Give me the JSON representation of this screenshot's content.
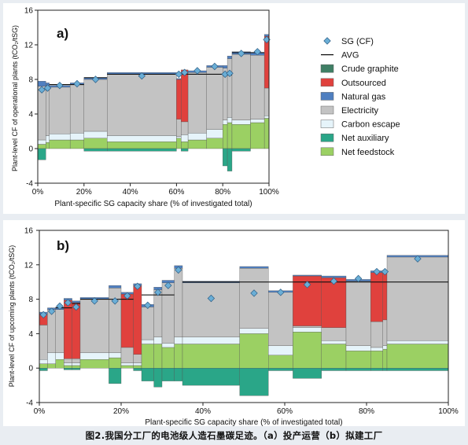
{
  "caption": "图2.我国分工厂的电池级人造石墨碳足迹。（a）投产运营（b）拟建工厂",
  "colors": {
    "Crude graphite": "#3f7f65",
    "Outsourced": "#e0413d",
    "Natural gas": "#4f7fc0",
    "Electricity": "#c3c3c3",
    "Carbon escape": "#e6f4fa",
    "Net auxiliary": "#2aa688",
    "Net feedstock": "#9bd063",
    "SG marker": "#6aaed6",
    "AVG": "#111111"
  },
  "legend": [
    {
      "label": "SG (CF)",
      "kind": "diamond"
    },
    {
      "label": "AVG",
      "kind": "line"
    },
    {
      "label": "Crude graphite",
      "kind": "box"
    },
    {
      "label": "Outsourced",
      "kind": "box"
    },
    {
      "label": "Natural gas",
      "kind": "box"
    },
    {
      "label": "Electricity",
      "kind": "box"
    },
    {
      "label": "Carbon escape",
      "kind": "box"
    },
    {
      "label": "Net auxiliary",
      "kind": "box"
    },
    {
      "label": "Net feedstock",
      "kind": "box"
    }
  ],
  "chart_data": [
    {
      "type": "bar",
      "panel_label": "a)",
      "title": "",
      "xlabel": "Plant-specific SG capacity share (% of investigated total)",
      "ylabel": "Plant-level CF of operational plants (tCO₂/tSG)",
      "xlim": [
        0,
        100
      ],
      "ylim": [
        -4,
        16
      ],
      "xticks": [
        "0%",
        "20%",
        "40%",
        "60%",
        "80%",
        "100%"
      ],
      "yticks": [
        "-4",
        "0",
        "4",
        "8",
        "12",
        "16"
      ],
      "bars": [
        {
          "x0": 0,
          "x1": 3.5,
          "values": {
            "Net auxiliary": -1.3,
            "Net feedstock": 0.5,
            "Carbon escape": 0.5,
            "Electricity": 6.2,
            "Natural gas": 0.6
          },
          "sg": 6.8,
          "avg": null
        },
        {
          "x0": 3.5,
          "x1": 5,
          "values": {
            "Net feedstock": 0.7,
            "Carbon escape": 0.8,
            "Electricity": 5.5,
            "Outsourced": 0.3,
            "Natural gas": 0.3
          },
          "sg": 7.0,
          "avg": null
        },
        {
          "x0": 5,
          "x1": 14,
          "values": {
            "Net feedstock": 1.0,
            "Carbon escape": 0.7,
            "Electricity": 5.4,
            "Natural gas": 0.2
          },
          "sg": 7.3,
          "avg": 7.4
        },
        {
          "x0": 14,
          "x1": 20,
          "values": {
            "Net feedstock": 1.0,
            "Carbon escape": 0.8,
            "Electricity": 5.6,
            "Natural gas": 0.2
          },
          "sg": 7.5,
          "avg": 7.4
        },
        {
          "x0": 20,
          "x1": 30,
          "values": {
            "Net auxiliary": -0.3,
            "Net feedstock": 1.2,
            "Carbon escape": 0.8,
            "Electricity": 6.0,
            "Natural gas": 0.2
          },
          "sg": 8.0,
          "avg": 8.2
        },
        {
          "x0": 30,
          "x1": 60,
          "values": {
            "Net auxiliary": -0.3,
            "Net feedstock": 0.8,
            "Carbon escape": 0.7,
            "Electricity": 7.1,
            "Natural gas": 0.2
          },
          "sg": 8.4,
          "avg": 8.6
        },
        {
          "x0": 60,
          "x1": 62,
          "values": {
            "Net feedstock": 1.2,
            "Carbon escape": 0.2,
            "Electricity": 2.0,
            "Outsourced": 4.6,
            "Natural gas": 0.1
          },
          "sg": 8.6,
          "avg": 8.6
        },
        {
          "x0": 62,
          "x1": 65,
          "values": {
            "Net auxiliary": -0.3,
            "Net feedstock": 0.8,
            "Carbon escape": 0.8,
            "Electricity": 1.5,
            "Outsourced": 6.0
          },
          "sg": 8.8,
          "avg": 8.6
        },
        {
          "x0": 65,
          "x1": 73,
          "values": {
            "Net feedstock": 1.0,
            "Carbon escape": 0.8,
            "Electricity": 7.0,
            "Natural gas": 0.2
          },
          "sg": 9.0,
          "avg": 8.6
        },
        {
          "x0": 73,
          "x1": 80,
          "values": {
            "Net feedstock": 1.2,
            "Carbon escape": 1.0,
            "Electricity": 7.2,
            "Natural gas": 0.2
          },
          "sg": 9.5,
          "avg": 8.6
        },
        {
          "x0": 80,
          "x1": 82,
          "values": {
            "Net auxiliary": -2.0,
            "Net feedstock": 2.8,
            "Carbon escape": 0.5,
            "Electricity": 6.0,
            "Natural gas": 0.3
          },
          "sg": 8.6,
          "avg": 8.5
        },
        {
          "x0": 82,
          "x1": 84,
          "values": {
            "Net auxiliary": -2.6,
            "Net feedstock": 3.0,
            "Carbon escape": 0.6,
            "Electricity": 6.8,
            "Natural gas": 0.3
          },
          "sg": 8.7,
          "avg": 8.5
        },
        {
          "x0": 84,
          "x1": 92,
          "values": {
            "Net auxiliary": -0.3,
            "Net feedstock": 2.8,
            "Carbon escape": 0.5,
            "Electricity": 7.6,
            "Natural gas": 0.3
          },
          "sg": 11.0,
          "avg": 11.1
        },
        {
          "x0": 92,
          "x1": 98,
          "values": {
            "Net feedstock": 3.0,
            "Carbon escape": 0.4,
            "Electricity": 7.4,
            "Natural gas": 0.3
          },
          "sg": 11.2,
          "avg": 11.1
        },
        {
          "x0": 98,
          "x1": 100,
          "values": {
            "Net feedstock": 3.5,
            "Carbon escape": 0.3,
            "Electricity": 3.2,
            "Outsourced": 6.0,
            "Natural gas": 0.2
          },
          "sg": 12.6,
          "avg": null
        }
      ]
    },
    {
      "type": "bar",
      "panel_label": "b)",
      "title": "",
      "xlabel": "Plant-specific SG capacity share (% of investigated total)",
      "ylabel": "Plant-level CF of upcoming plants (tCO₂/tSG)",
      "xlim": [
        0,
        100
      ],
      "ylim": [
        -4,
        16
      ],
      "xticks": [
        "0%",
        "20%",
        "40%",
        "60%",
        "80%",
        "100%"
      ],
      "yticks": [
        "-4",
        "0",
        "4",
        "8",
        "12",
        "16"
      ],
      "bars": [
        {
          "x0": 0,
          "x1": 2,
          "values": {
            "Net auxiliary": -0.3,
            "Net feedstock": 0.5,
            "Carbon escape": 0.5,
            "Electricity": 4.0,
            "Outsourced": 1.3,
            "Natural gas": 0.2
          },
          "sg": 6.2,
          "avg": null
        },
        {
          "x0": 2,
          "x1": 4,
          "values": {
            "Net feedstock": 0.5,
            "Carbon escape": 1.3,
            "Electricity": 5.0,
            "Natural gas": 0.2
          },
          "sg": 6.6,
          "avg": null
        },
        {
          "x0": 4,
          "x1": 6,
          "values": {
            "Net feedstock": 1.0,
            "Carbon escape": 0.8,
            "Electricity": 5.0,
            "Natural gas": 0.3
          },
          "sg": 7.2,
          "avg": 7.0
        },
        {
          "x0": 6,
          "x1": 8,
          "values": {
            "Net auxiliary": -0.2,
            "Net feedstock": 0.3,
            "Carbon escape": 0.3,
            "Electricity": 0.5,
            "Outsourced": 6.8,
            "Natural gas": 0.2
          },
          "sg": 7.6,
          "avg": 7.0
        },
        {
          "x0": 8,
          "x1": 10,
          "values": {
            "Net auxiliary": -0.2,
            "Net feedstock": 0.3,
            "Carbon escape": 0.3,
            "Electricity": 0.5,
            "Outsourced": 6.5,
            "Natural gas": 0.2
          },
          "sg": 7.1,
          "avg": 7.5
        },
        {
          "x0": 10,
          "x1": 17,
          "values": {
            "Net feedstock": 1.0,
            "Carbon escape": 0.8,
            "Electricity": 6.2,
            "Natural gas": 0.2
          },
          "sg": 7.8,
          "avg": 8.0
        },
        {
          "x0": 17,
          "x1": 20,
          "values": {
            "Net auxiliary": -1.8,
            "Net feedstock": 1.2,
            "Carbon escape": 0.6,
            "Electricity": 7.5,
            "Natural gas": 0.3
          },
          "sg": 7.8,
          "avg": 8.0
        },
        {
          "x0": 20,
          "x1": 23,
          "values": {
            "Net feedstock": 0.3,
            "Carbon escape": 0.3,
            "Electricity": 1.8,
            "Outsourced": 6.2,
            "Natural gas": 0.2
          },
          "sg": 8.4,
          "avg": 8.0
        },
        {
          "x0": 23,
          "x1": 25,
          "values": {
            "Net auxiliary": -0.3,
            "Net feedstock": 0.3,
            "Carbon escape": 0.3,
            "Electricity": 1.0,
            "Outsourced": 8.0,
            "Natural gas": 0.2
          },
          "sg": 9.5,
          "avg": null
        },
        {
          "x0": 25,
          "x1": 28,
          "values": {
            "Net auxiliary": -1.5,
            "Net feedstock": 2.8,
            "Carbon escape": 0.5,
            "Electricity": 3.8,
            "Natural gas": 0.3
          },
          "sg": 7.3,
          "avg": 8.5
        },
        {
          "x0": 28,
          "x1": 30,
          "values": {
            "Net auxiliary": -2.2,
            "Net feedstock": 2.8,
            "Carbon escape": 0.8,
            "Electricity": 5.5,
            "Natural gas": 0.3
          },
          "sg": 8.8,
          "avg": 8.5
        },
        {
          "x0": 30,
          "x1": 33,
          "values": {
            "Net auxiliary": -1.5,
            "Net feedstock": 2.4,
            "Carbon escape": 0.5,
            "Electricity": 7.0,
            "Natural gas": 0.3
          },
          "sg": 9.6,
          "avg": 8.5
        },
        {
          "x0": 33,
          "x1": 35,
          "values": {
            "Net auxiliary": -1.5,
            "Net feedstock": 2.8,
            "Carbon escape": 0.8,
            "Electricity": 8.0,
            "Natural gas": 0.3
          },
          "sg": 11.4,
          "avg": null
        },
        {
          "x0": 35,
          "x1": 49,
          "values": {
            "Net auxiliary": -2.0,
            "Net feedstock": 2.8,
            "Carbon escape": 0.8,
            "Electricity": 6.3,
            "Natural gas": 0.2
          },
          "sg": 8.1,
          "avg": 10.0
        },
        {
          "x0": 49,
          "x1": 56,
          "values": {
            "Net auxiliary": -3.2,
            "Net feedstock": 4.0,
            "Carbon escape": 0.6,
            "Electricity": 7.0,
            "Natural gas": 0.2
          },
          "sg": 8.7,
          "avg": 10.0
        },
        {
          "x0": 56,
          "x1": 62,
          "values": {
            "Net auxiliary": -0.3,
            "Net feedstock": 1.5,
            "Carbon escape": 1.1,
            "Electricity": 6.2,
            "Natural gas": 0.2
          },
          "sg": 8.8,
          "avg": 10.0
        },
        {
          "x0": 62,
          "x1": 69,
          "values": {
            "Net auxiliary": -1.2,
            "Net feedstock": 4.2,
            "Carbon escape": 0.5,
            "Electricity": 0.2,
            "Outsourced": 5.8,
            "Natural gas": 0.1
          },
          "sg": 9.7,
          "avg": 10.0
        },
        {
          "x0": 69,
          "x1": 75,
          "values": {
            "Net auxiliary": -0.3,
            "Net feedstock": 2.8,
            "Carbon escape": 0.4,
            "Electricity": 1.5,
            "Outsourced": 5.8,
            "Natural gas": 0.2
          },
          "sg": 10.1,
          "avg": 10.0
        },
        {
          "x0": 75,
          "x1": 81,
          "values": {
            "Net auxiliary": -0.3,
            "Net feedstock": 2.0,
            "Carbon escape": 0.6,
            "Electricity": 7.5,
            "Natural gas": 0.2
          },
          "sg": 10.4,
          "avg": 10.0
        },
        {
          "x0": 81,
          "x1": 84,
          "values": {
            "Net auxiliary": -0.3,
            "Net feedstock": 2.0,
            "Carbon escape": 0.4,
            "Electricity": 3.0,
            "Outsourced": 5.7,
            "Natural gas": 0.2
          },
          "sg": 11.2,
          "avg": 10.0
        },
        {
          "x0": 84,
          "x1": 85,
          "values": {
            "Net auxiliary": -0.3,
            "Net feedstock": 2.2,
            "Carbon escape": 0.4,
            "Electricity": 3.0,
            "Outsourced": 5.6,
            "Natural gas": 0.2
          },
          "sg": 11.2,
          "avg": 10.0
        },
        {
          "x0": 85,
          "x1": 100,
          "values": {
            "Net auxiliary": -0.3,
            "Net feedstock": 2.8,
            "Carbon escape": 0.4,
            "Electricity": 9.7,
            "Natural gas": 0.2
          },
          "sg": 12.7,
          "avg": 10.0
        }
      ]
    }
  ]
}
